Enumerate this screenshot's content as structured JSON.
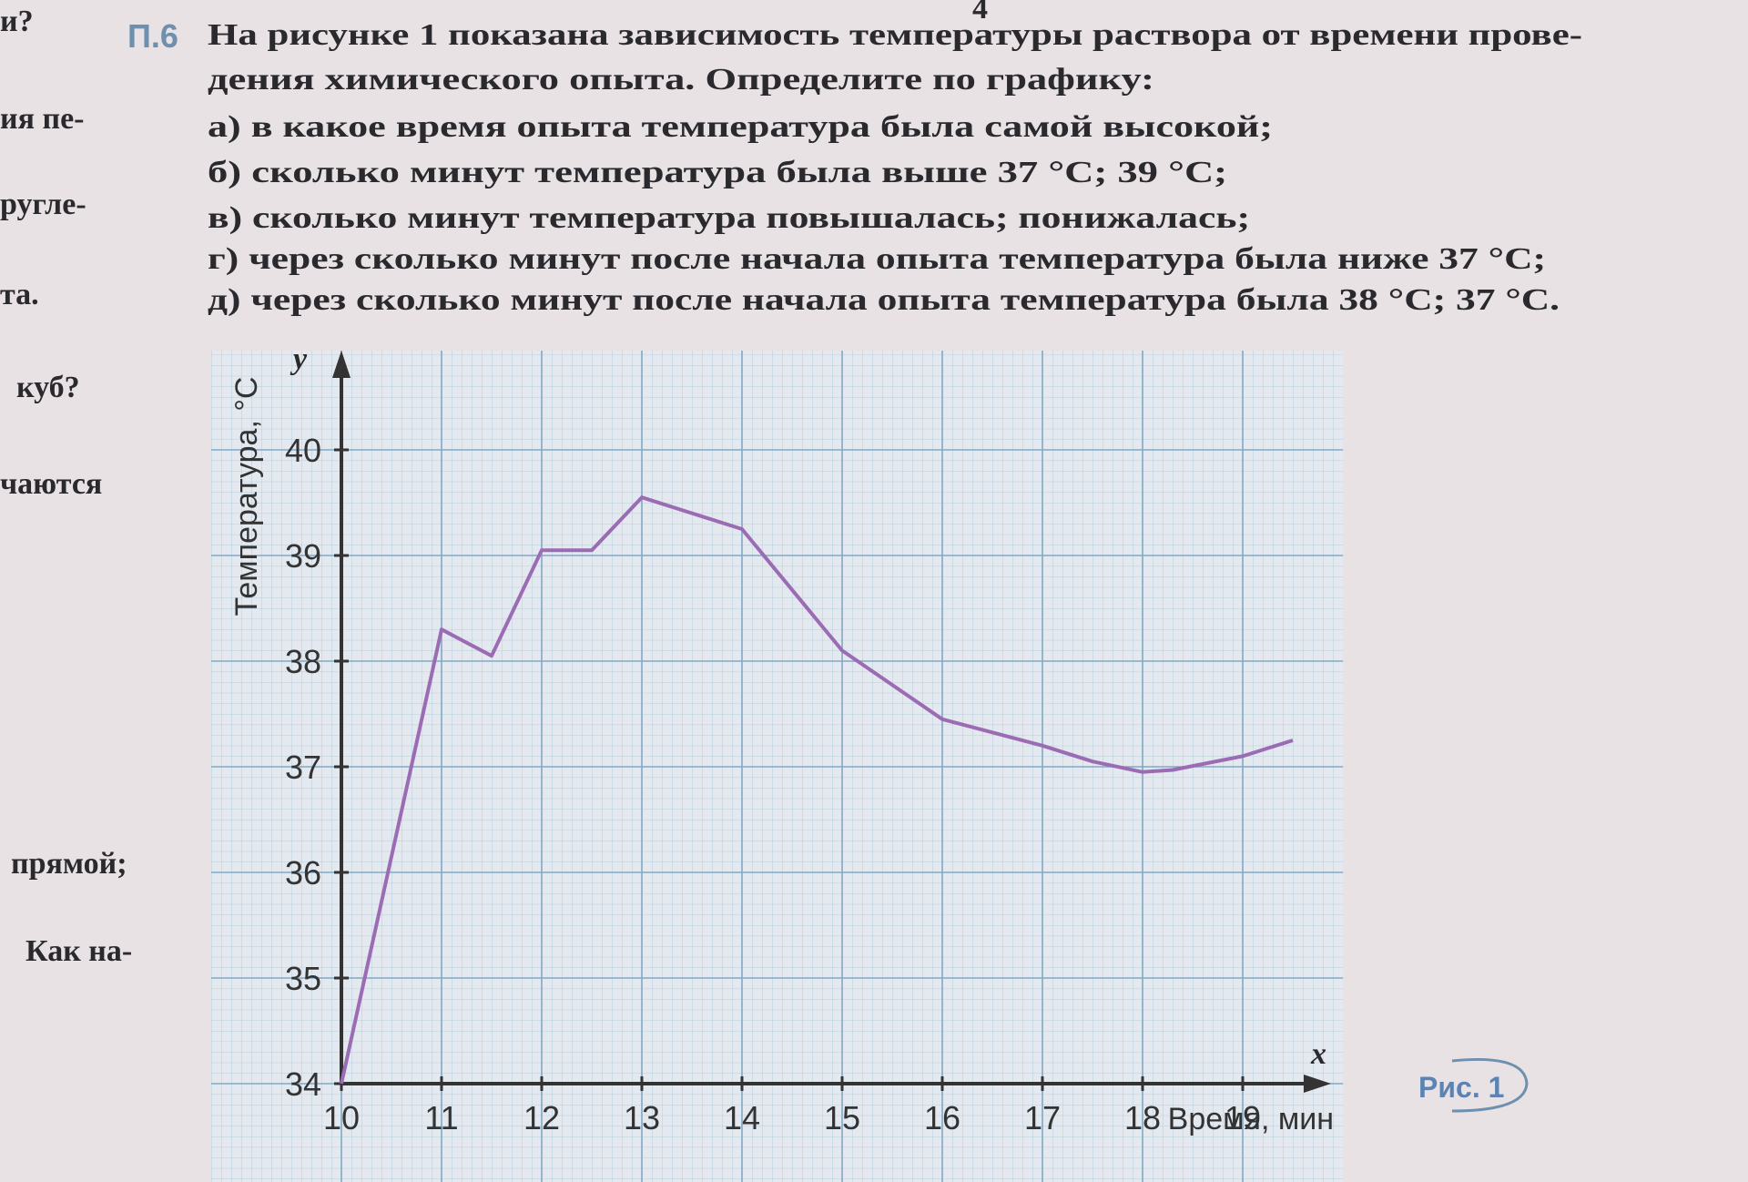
{
  "page_number": "4",
  "margin_fragments": [
    "и?",
    "ия пе-",
    "ругле-",
    "та.",
    "куб?",
    "чаются",
    "прямой;",
    "Как на-"
  ],
  "problem": {
    "number": "П.6",
    "lines": [
      "На рисунке 1 показана зависимость температуры раствора от времени прове-",
      "дения химического опыта. Определите по графику:",
      "а) в какое время опыта температура была самой высокой;",
      "б) сколько минут температура была выше 37 °C; 39 °C;",
      "в) сколько минут температура повышалась; понижалась;",
      "г) через сколько минут после начала опыта температура была ниже 37 °C;",
      "д) через сколько минут после начала опыта температура была 38 °C; 37 °C."
    ]
  },
  "caption": "Рис. 1",
  "chart_data": {
    "type": "line",
    "y_axis_label": "Температура, °C",
    "y_axis_letter": "y",
    "x_axis_label": "Время, мин",
    "x_axis_letter": "x",
    "x": [
      10,
      11,
      11.5,
      12,
      12.5,
      13,
      14,
      15,
      16,
      17,
      17.5,
      18,
      18.3,
      19,
      19.5
    ],
    "values": [
      34,
      38.3,
      38.05,
      39.05,
      39.05,
      39.55,
      39.25,
      38.1,
      37.45,
      37.2,
      37.05,
      36.95,
      36.97,
      37.1,
      37.25
    ],
    "color": "#9b6cb3",
    "xlim": [
      10,
      20
    ],
    "ylim": [
      34,
      41
    ],
    "xticks": [
      10,
      11,
      12,
      13,
      14,
      15,
      16,
      17,
      18,
      19
    ],
    "yticks": [
      34,
      35,
      36,
      37,
      38,
      39,
      40
    ],
    "grid": true
  }
}
